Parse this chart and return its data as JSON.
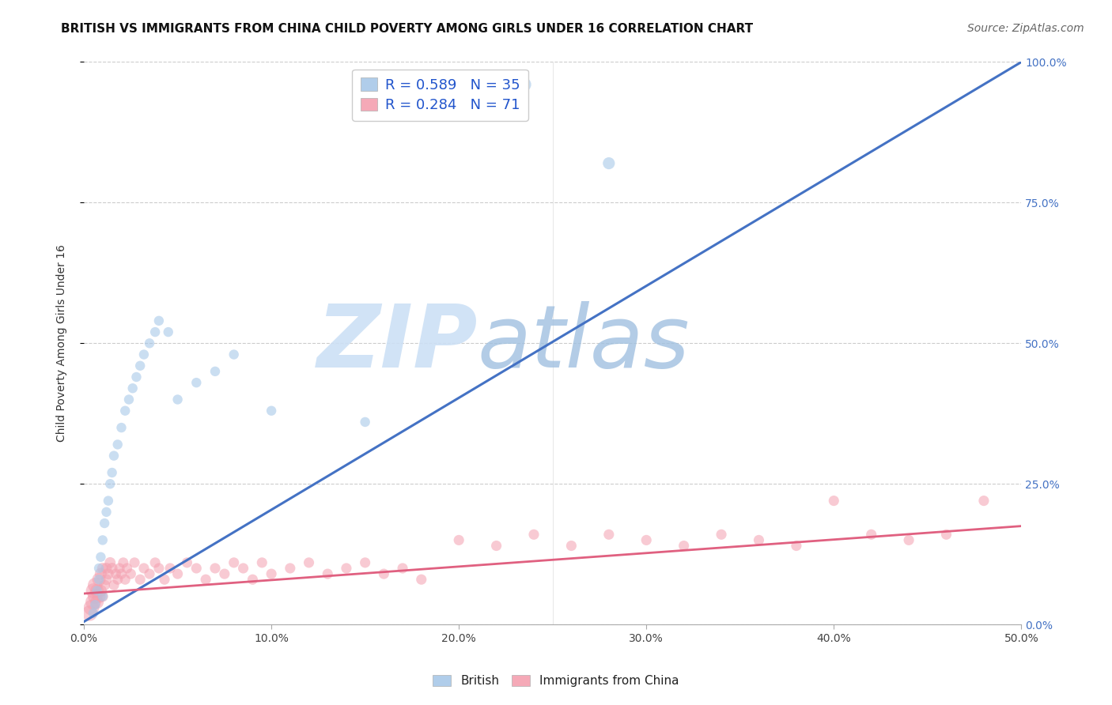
{
  "title": "BRITISH VS IMMIGRANTS FROM CHINA CHILD POVERTY AMONG GIRLS UNDER 16 CORRELATION CHART",
  "source": "Source: ZipAtlas.com",
  "ylabel": "Child Poverty Among Girls Under 16",
  "xrange": [
    0.0,
    0.5
  ],
  "yrange": [
    0.0,
    1.0
  ],
  "legend_british": "R = 0.589   N = 35",
  "legend_china": "R = 0.284   N = 71",
  "british_color": "#a8c8e8",
  "china_color": "#f4a0b0",
  "blue_line_color": "#4472c4",
  "pink_line_color": "#e06080",
  "watermark_zip": "ZIP",
  "watermark_atlas": "atlas",
  "watermark_color_zip": "#d0e8f8",
  "watermark_color_atlas": "#b0cce8",
  "title_fontsize": 11,
  "axis_label_fontsize": 10,
  "tick_fontsize": 10,
  "legend_fontsize": 13,
  "watermark_fontsize": 80,
  "source_fontsize": 10,
  "british_x": [
    0.005,
    0.006,
    0.007,
    0.008,
    0.008,
    0.009,
    0.01,
    0.01,
    0.011,
    0.012,
    0.013,
    0.014,
    0.015,
    0.016,
    0.018,
    0.02,
    0.022,
    0.024,
    0.026,
    0.028,
    0.03,
    0.032,
    0.035,
    0.038,
    0.04,
    0.045,
    0.05,
    0.06,
    0.07,
    0.08,
    0.1,
    0.15,
    0.23,
    0.235,
    0.28
  ],
  "british_y": [
    0.02,
    0.035,
    0.06,
    0.08,
    0.1,
    0.12,
    0.05,
    0.15,
    0.18,
    0.2,
    0.22,
    0.25,
    0.27,
    0.3,
    0.32,
    0.35,
    0.38,
    0.4,
    0.42,
    0.44,
    0.46,
    0.48,
    0.5,
    0.52,
    0.54,
    0.52,
    0.4,
    0.43,
    0.45,
    0.48,
    0.38,
    0.36,
    0.955,
    0.96,
    0.82
  ],
  "british_sizes": [
    80,
    80,
    80,
    80,
    80,
    80,
    80,
    80,
    80,
    80,
    80,
    80,
    80,
    80,
    80,
    80,
    80,
    80,
    80,
    80,
    80,
    80,
    80,
    80,
    80,
    80,
    80,
    80,
    80,
    80,
    80,
    80,
    150,
    150,
    120
  ],
  "china_x": [
    0.003,
    0.004,
    0.005,
    0.005,
    0.006,
    0.006,
    0.007,
    0.007,
    0.008,
    0.008,
    0.009,
    0.009,
    0.01,
    0.01,
    0.011,
    0.012,
    0.012,
    0.013,
    0.014,
    0.015,
    0.016,
    0.017,
    0.018,
    0.019,
    0.02,
    0.021,
    0.022,
    0.023,
    0.025,
    0.027,
    0.03,
    0.032,
    0.035,
    0.038,
    0.04,
    0.043,
    0.046,
    0.05,
    0.055,
    0.06,
    0.065,
    0.07,
    0.075,
    0.08,
    0.085,
    0.09,
    0.095,
    0.1,
    0.11,
    0.12,
    0.13,
    0.14,
    0.15,
    0.16,
    0.17,
    0.18,
    0.2,
    0.22,
    0.24,
    0.26,
    0.28,
    0.3,
    0.32,
    0.34,
    0.36,
    0.38,
    0.4,
    0.42,
    0.44,
    0.46,
    0.48
  ],
  "china_y": [
    0.02,
    0.03,
    0.04,
    0.06,
    0.05,
    0.07,
    0.04,
    0.06,
    0.05,
    0.08,
    0.06,
    0.09,
    0.05,
    0.1,
    0.07,
    0.08,
    0.1,
    0.09,
    0.11,
    0.1,
    0.07,
    0.09,
    0.08,
    0.1,
    0.09,
    0.11,
    0.08,
    0.1,
    0.09,
    0.11,
    0.08,
    0.1,
    0.09,
    0.11,
    0.1,
    0.08,
    0.1,
    0.09,
    0.11,
    0.1,
    0.08,
    0.1,
    0.09,
    0.11,
    0.1,
    0.08,
    0.11,
    0.09,
    0.1,
    0.11,
    0.09,
    0.1,
    0.11,
    0.09,
    0.1,
    0.08,
    0.15,
    0.14,
    0.16,
    0.14,
    0.16,
    0.15,
    0.14,
    0.16,
    0.15,
    0.14,
    0.22,
    0.16,
    0.15,
    0.16,
    0.22
  ],
  "china_sizes": [
    200,
    200,
    200,
    180,
    180,
    180,
    150,
    150,
    150,
    150,
    120,
    120,
    100,
    100,
    100,
    100,
    100,
    100,
    100,
    100,
    90,
    90,
    90,
    90,
    90,
    90,
    90,
    90,
    90,
    90,
    90,
    90,
    90,
    90,
    90,
    90,
    90,
    90,
    90,
    90,
    90,
    90,
    90,
    90,
    90,
    90,
    90,
    90,
    90,
    90,
    90,
    90,
    90,
    90,
    90,
    90,
    90,
    90,
    90,
    90,
    90,
    90,
    90,
    90,
    90,
    90,
    90,
    90,
    90,
    90,
    90
  ],
  "blue_line_x": [
    0.0,
    0.5
  ],
  "blue_line_y": [
    0.005,
    1.0
  ],
  "pink_line_x": [
    0.0,
    0.5
  ],
  "pink_line_y": [
    0.055,
    0.175
  ]
}
